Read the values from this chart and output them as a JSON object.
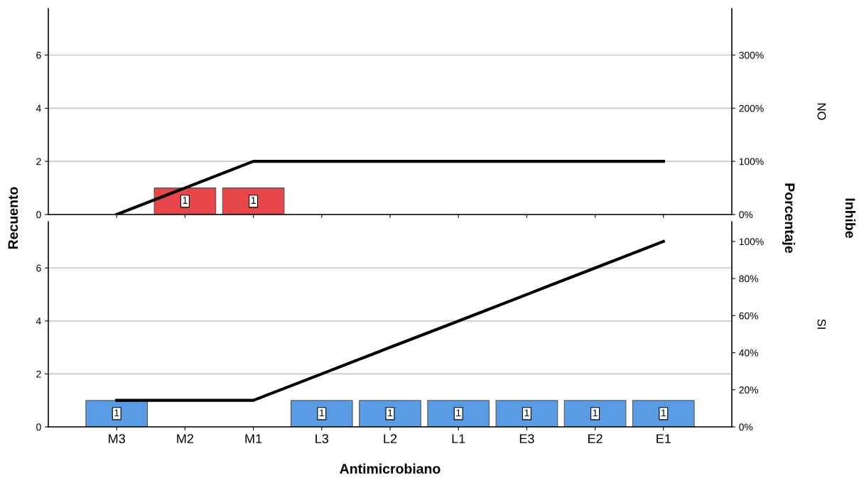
{
  "chart_data": [
    {
      "type": "bar",
      "categories": [
        null,
        null,
        null,
        null,
        null,
        null,
        null,
        null,
        null
      ],
      "ylabel": "Recuento",
      "y2label": "Porcentaje",
      "annotations": [
        "NO",
        "Inhibe"
      ],
      "tick_labels": "y",
      "grid": "y",
      "ylim": [
        0,
        7.75
      ],
      "yticks": [
        0,
        2,
        4,
        6
      ],
      "y2lim": [
        0,
        387.5
      ],
      "y2ticks": [
        {
          "value": 0,
          "label": "0%"
        },
        {
          "value": 100,
          "label": "100%"
        },
        {
          "value": 200,
          "label": "200%"
        },
        {
          "value": 300,
          "label": "300%"
        }
      ],
      "series": [
        {
          "color": "#e8474a",
          "values": [
            0,
            1,
            1,
            0,
            0,
            0,
            0,
            0,
            0
          ],
          "value_labels": [
            null,
            "1",
            "1",
            null,
            null,
            null,
            null,
            null,
            null
          ]
        },
        {
          "type": "line",
          "axis": "y2",
          "color": "#000000",
          "values": [
            0,
            50,
            100,
            100,
            100,
            100,
            100,
            100,
            100
          ]
        }
      ]
    },
    {
      "type": "bar",
      "categories": [
        "M3",
        "M2",
        "M1",
        "L3",
        "L2",
        "L1",
        "E3",
        "E2",
        "E1"
      ],
      "xlabel": "Antimicrobiano",
      "annotations": [
        "SI"
      ],
      "grid": "y",
      "ylim": [
        0,
        7.75
      ],
      "yticks": [
        0,
        2,
        4,
        6
      ],
      "y2lim": [
        0,
        110.7
      ],
      "y2ticks": [
        {
          "value": 0,
          "label": "0%"
        },
        {
          "value": 20,
          "label": "20%"
        },
        {
          "value": 40,
          "label": "40%"
        },
        {
          "value": 60,
          "label": "60%"
        },
        {
          "value": 80,
          "label": "80%"
        },
        {
          "value": 100,
          "label": "100%"
        }
      ],
      "series": [
        {
          "color": "#5a9be6",
          "values": [
            1,
            0,
            0,
            1,
            1,
            1,
            1,
            1,
            1
          ],
          "value_labels": [
            "1",
            null,
            null,
            "1",
            "1",
            "1",
            "1",
            "1",
            "1"
          ]
        },
        {
          "type": "line",
          "axis": "y2",
          "color": "#000000",
          "values": [
            14.3,
            14.3,
            14.3,
            28.6,
            42.9,
            57.1,
            71.4,
            85.7,
            100
          ]
        }
      ]
    }
  ]
}
